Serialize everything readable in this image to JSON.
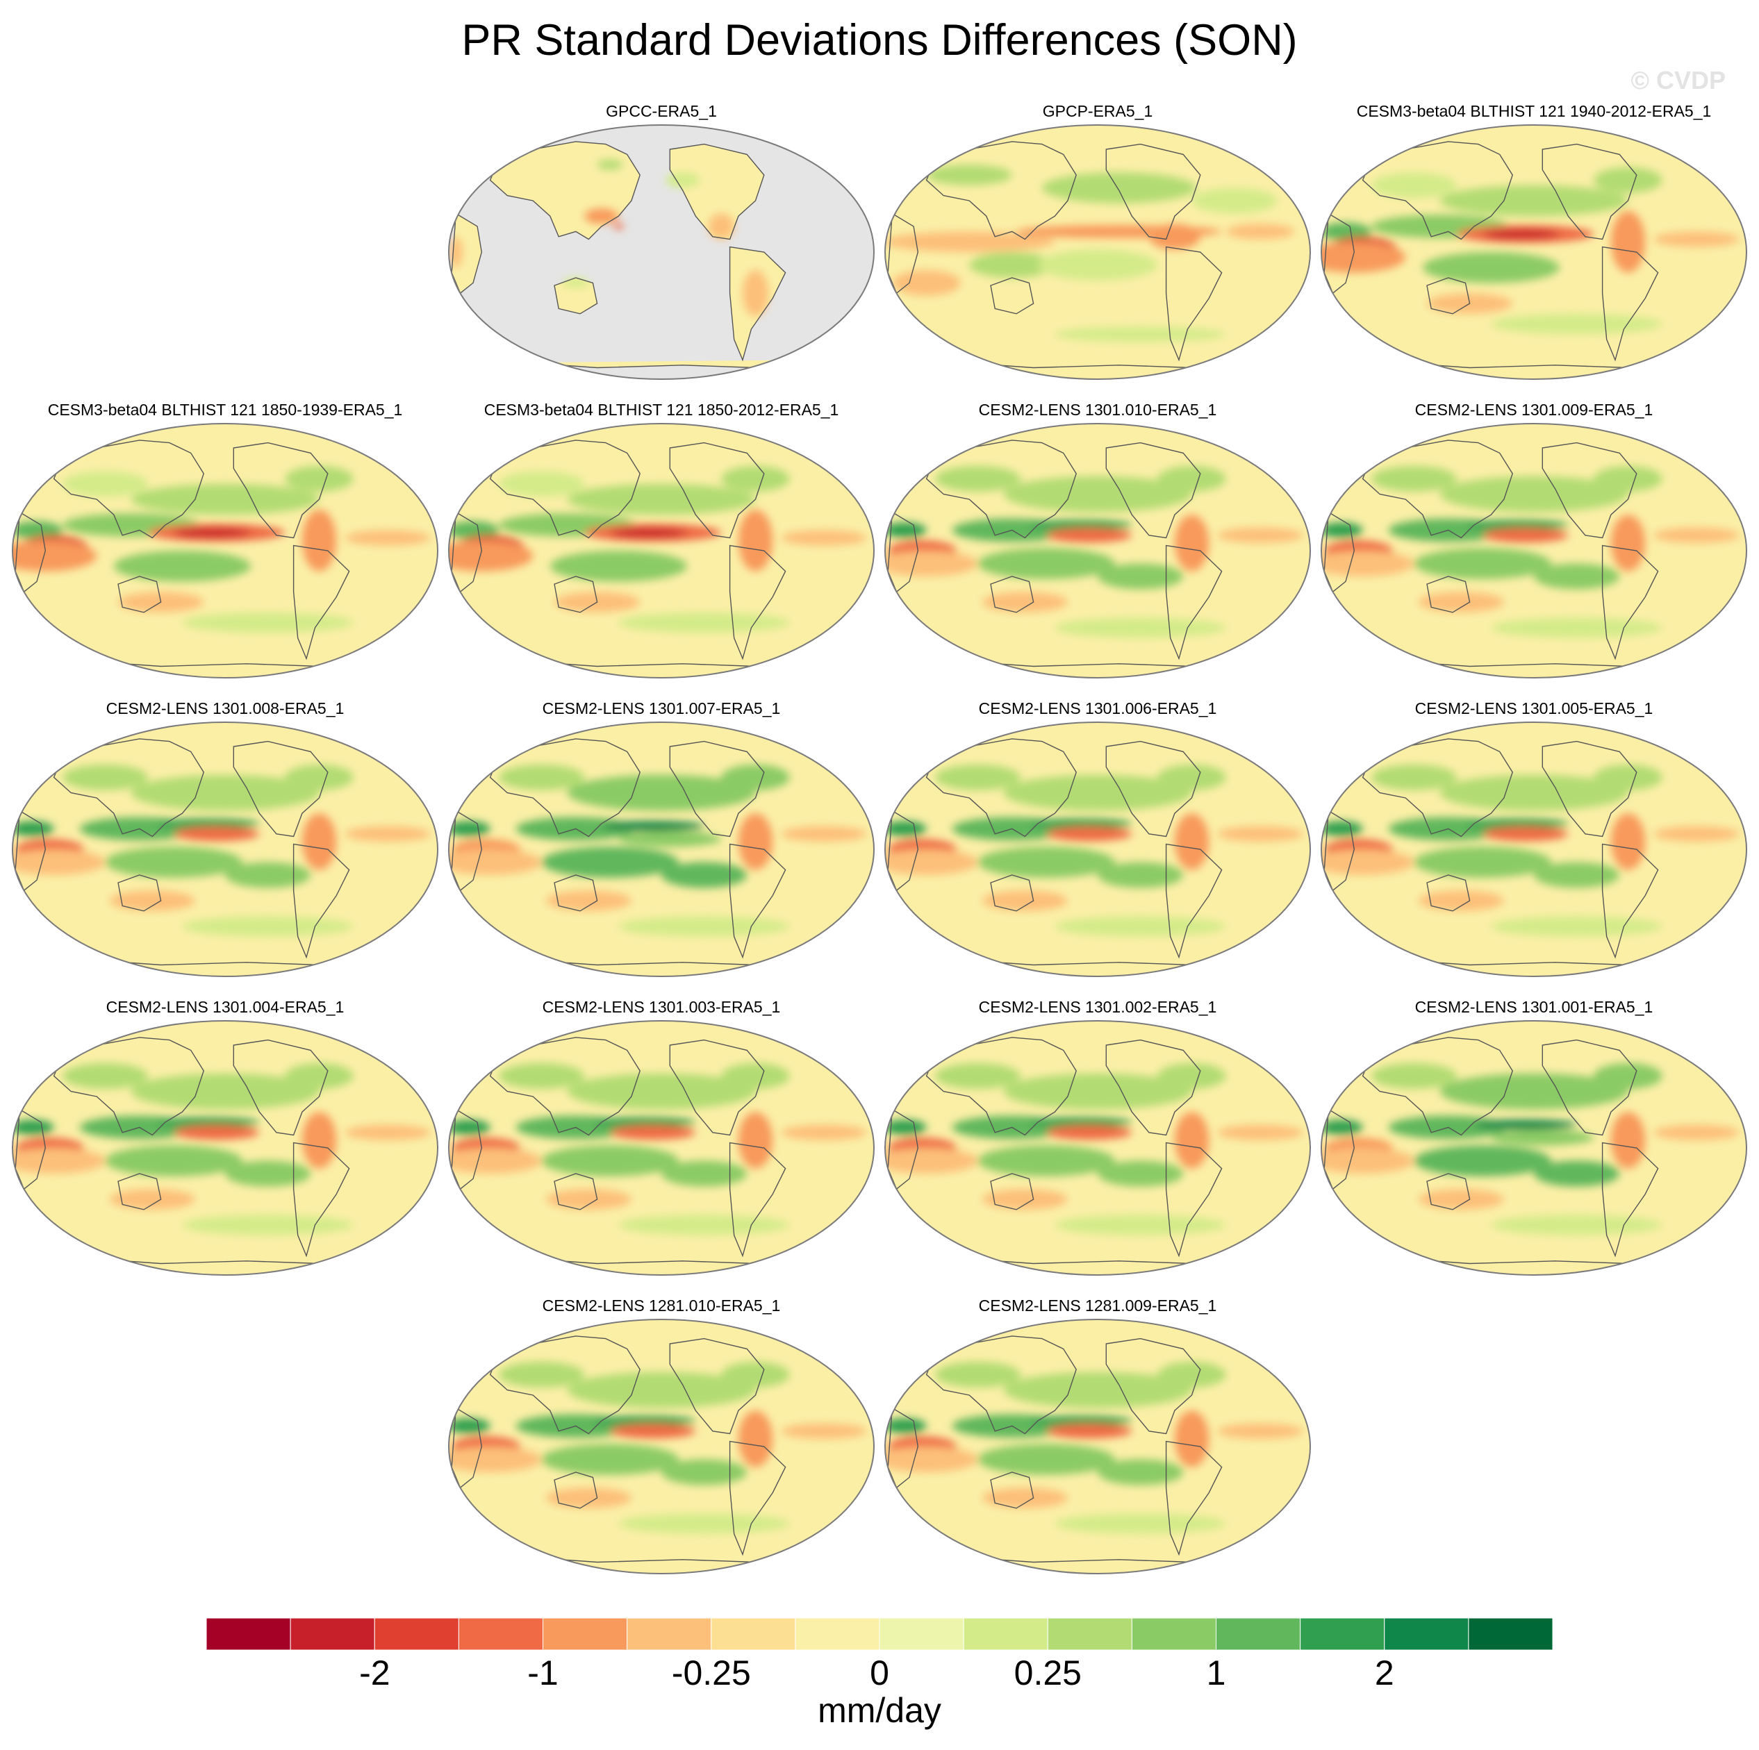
{
  "title": "PR Standard Deviations Differences (SON)",
  "watermark": "© CVDP",
  "panels": [
    {
      "label": "GPCC-ERA5_1",
      "ocean_missing": true,
      "pattern": "obs-land"
    },
    {
      "label": "GPCP-ERA5_1",
      "ocean_missing": false,
      "pattern": "obs"
    },
    {
      "label": "CESM3-beta04 BLTHIST 121 1940-2012-ERA5_1",
      "ocean_missing": false,
      "pattern": "model-red"
    },
    {
      "label": "CESM3-beta04 BLTHIST 121 1850-1939-ERA5_1",
      "ocean_missing": false,
      "pattern": "model-red"
    },
    {
      "label": "CESM3-beta04 BLTHIST 121 1850-2012-ERA5_1",
      "ocean_missing": false,
      "pattern": "model-red"
    },
    {
      "label": "CESM2-LENS 1301.010-ERA5_1",
      "ocean_missing": false,
      "pattern": "model-mixed"
    },
    {
      "label": "CESM2-LENS 1301.009-ERA5_1",
      "ocean_missing": false,
      "pattern": "model-mixed"
    },
    {
      "label": "CESM2-LENS 1301.008-ERA5_1",
      "ocean_missing": false,
      "pattern": "model-mixed"
    },
    {
      "label": "CESM2-LENS 1301.007-ERA5_1",
      "ocean_missing": false,
      "pattern": "model-green"
    },
    {
      "label": "CESM2-LENS 1301.006-ERA5_1",
      "ocean_missing": false,
      "pattern": "model-mixed"
    },
    {
      "label": "CESM2-LENS 1301.005-ERA5_1",
      "ocean_missing": false,
      "pattern": "model-mixed"
    },
    {
      "label": "CESM2-LENS 1301.004-ERA5_1",
      "ocean_missing": false,
      "pattern": "model-mixed"
    },
    {
      "label": "CESM2-LENS 1301.003-ERA5_1",
      "ocean_missing": false,
      "pattern": "model-mixed"
    },
    {
      "label": "CESM2-LENS 1301.002-ERA5_1",
      "ocean_missing": false,
      "pattern": "model-mixed"
    },
    {
      "label": "CESM2-LENS 1301.001-ERA5_1",
      "ocean_missing": false,
      "pattern": "model-green"
    },
    {
      "label": "CESM2-LENS 1281.010-ERA5_1",
      "ocean_missing": false,
      "pattern": "model-mixed"
    },
    {
      "label": "CESM2-LENS 1281.009-ERA5_1",
      "ocean_missing": false,
      "pattern": "model-mixed"
    }
  ],
  "colorbar": {
    "colors": [
      "#a50026",
      "#c8202a",
      "#df4030",
      "#ef6a45",
      "#f89a5b",
      "#fcc07a",
      "#fddf94",
      "#fbf0a8",
      "#edf5ac",
      "#d4eb8a",
      "#b2dc73",
      "#8bcb65",
      "#60b75c",
      "#30a050",
      "#0f874a",
      "#006837"
    ],
    "tick_labels": [
      "-2",
      "-1",
      "-0.25",
      "0",
      "0.25",
      "1",
      "2"
    ],
    "units": "mm/day"
  },
  "map_colors": {
    "background": "#fbefa6",
    "missing": "#e5e5e5",
    "coast": "#555555",
    "border": "#7a7a7a"
  }
}
